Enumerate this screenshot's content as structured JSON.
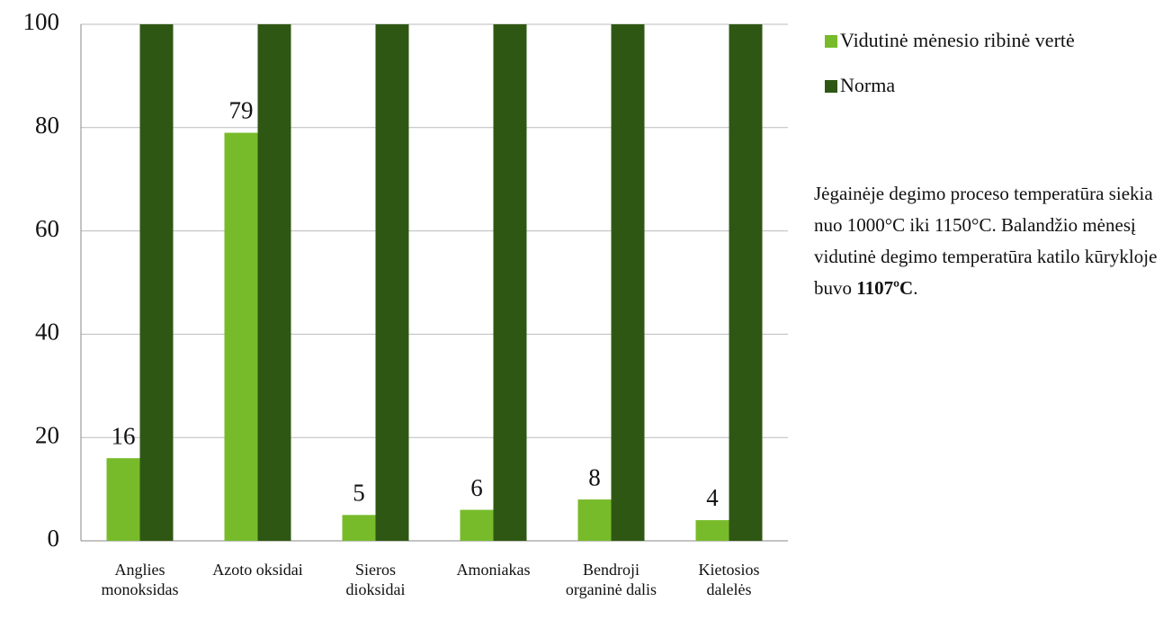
{
  "chart_data": {
    "type": "bar",
    "categories": [
      "Anglies monoksidas",
      "Azoto oksidai",
      "Sieros dioksidai",
      "Amoniakas",
      "Bendroji organinė dalis",
      "Kietosios dalelės"
    ],
    "series": [
      {
        "name": "Vidutinė mėnesio ribinė vertė",
        "color": "#77bb2a",
        "values": [
          16,
          79,
          5,
          6,
          8,
          4
        ],
        "data_labels": true
      },
      {
        "name": "Norma",
        "color": "#2f5714",
        "values": [
          100,
          100,
          100,
          100,
          100,
          100
        ],
        "data_labels": false
      }
    ],
    "ylim": [
      0,
      100
    ],
    "yticks": [
      0,
      20,
      40,
      60,
      80,
      100
    ],
    "grid": true,
    "legend": "right",
    "annotation": "Jėgainėje degimo proceso temperatūra siekia nuo 1000°C iki 1150°C. Balandžio mėnesį vidutinė degimo temperatūra katilo kūrykloje buvo",
    "annotation_emphasis": "1107ºC"
  }
}
